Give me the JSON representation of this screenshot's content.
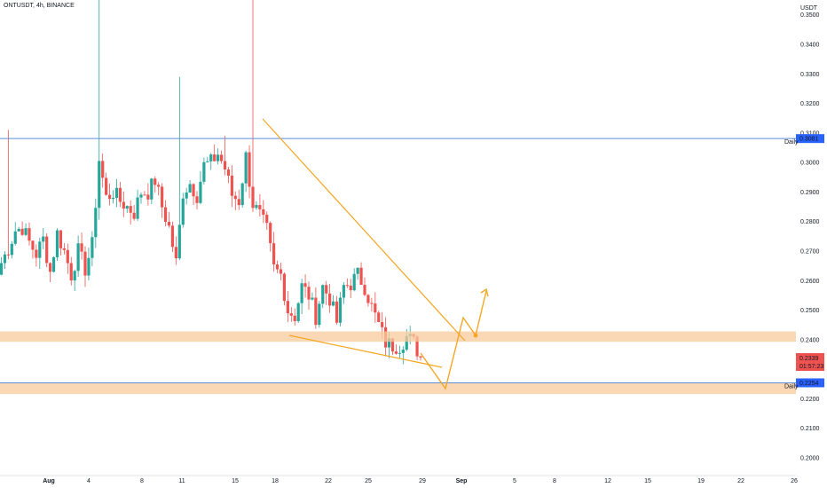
{
  "header": {
    "symbol_title": "ONTUSDT, 4h, BINANCE"
  },
  "price_axis": {
    "currency": "USDT",
    "ticks": [
      "0.3500",
      "0.3400",
      "0.3300",
      "0.3200",
      "0.3100",
      "0.3000",
      "0.2900",
      "0.2800",
      "0.2700",
      "0.2600",
      "0.2500",
      "0.2400",
      "0.2300",
      "0.2200",
      "0.2100",
      "0.2000"
    ],
    "daily_level_badge": "0.3081",
    "current_price_badge": "0.2339",
    "countdown_badge": "01:57:23",
    "lower_level_badge": "0.2254",
    "daily_label": "Daily",
    "lower_label": "Daily"
  },
  "time_axis": {
    "labels": [
      "Aug",
      "4",
      "8",
      "11",
      "15",
      "18",
      "22",
      "25",
      "29",
      "Sep",
      "5",
      "8",
      "12",
      "15",
      "19",
      "22",
      "26"
    ]
  },
  "colors": {
    "up_candle": "#26a69a",
    "down_candle": "#ef5350",
    "current_badge": "#ef5350",
    "daily_line": "#2962ff",
    "zone_fill": "#f9cb9c",
    "drawing_orange": "#f5a623"
  },
  "chart_data": {
    "type": "candlestick",
    "symbol": "ONTUSDT",
    "timeframe": "4h",
    "exchange": "BINANCE",
    "ylim": [
      0.195,
      0.356
    ],
    "y_scale": "linear",
    "levels": {
      "daily_resistance": 0.3081,
      "support_zone": [
        0.2393,
        0.2428
      ],
      "lower_zone": [
        0.2216,
        0.2254
      ],
      "current_price": 0.2339
    },
    "pattern": "falling wedge with projected breakout",
    "close_path_approx": [
      0.266,
      0.271,
      0.277,
      0.278,
      0.273,
      0.269,
      0.274,
      0.263,
      0.276,
      0.27,
      0.262,
      0.27,
      0.264,
      0.272,
      0.301,
      0.288,
      0.29,
      0.287,
      0.285,
      0.283,
      0.29,
      0.29,
      0.294,
      0.285,
      0.278,
      0.266,
      0.29,
      0.293,
      0.289,
      0.299,
      0.3,
      0.303,
      0.298,
      0.289,
      0.287,
      0.302,
      0.286,
      0.282,
      0.277,
      0.264,
      0.262,
      0.25,
      0.248,
      0.258,
      0.255,
      0.248,
      0.258,
      0.254,
      0.246,
      0.258,
      0.259,
      0.262,
      0.258,
      0.251,
      0.245,
      0.239,
      0.238,
      0.238,
      0.241,
      0.239,
      0.234
    ]
  }
}
